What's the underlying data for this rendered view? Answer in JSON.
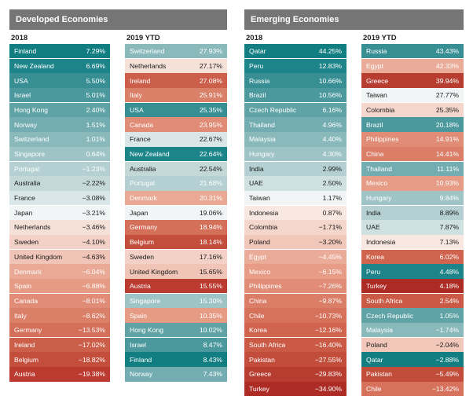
{
  "panels": {
    "developed": {
      "title": "Developed Economies"
    },
    "emerging": {
      "title": "Emerging Economies"
    }
  },
  "chart_data": [
    {
      "type": "table",
      "group": "Developed Economies",
      "period": "2018",
      "rows": [
        {
          "country": "Finland",
          "value": 7.29,
          "label": "7.29%"
        },
        {
          "country": "New Zealand",
          "value": 6.69,
          "label": "6.69%"
        },
        {
          "country": "USA",
          "value": 5.5,
          "label": "5.50%"
        },
        {
          "country": "Israel",
          "value": 5.01,
          "label": "5.01%"
        },
        {
          "country": "Hong Kong",
          "value": 2.4,
          "label": "2.40%"
        },
        {
          "country": "Norway",
          "value": 1.51,
          "label": "1.51%"
        },
        {
          "country": "Switzerland",
          "value": 1.01,
          "label": "1.01%"
        },
        {
          "country": "Singapore",
          "value": 0.64,
          "label": "0.64%"
        },
        {
          "country": "Portugal",
          "value": -1.23,
          "label": "−1.23%"
        },
        {
          "country": "Australia",
          "value": -2.22,
          "label": "−2.22%"
        },
        {
          "country": "France",
          "value": -3.08,
          "label": "−3.08%"
        },
        {
          "country": "Japan",
          "value": -3.21,
          "label": "−3.21%"
        },
        {
          "country": "Netherlands",
          "value": -3.46,
          "label": "−3.46%"
        },
        {
          "country": "Sweden",
          "value": -4.1,
          "label": "−4.10%"
        },
        {
          "country": "United Kingdom",
          "value": -4.63,
          "label": "−4.63%"
        },
        {
          "country": "Denmark",
          "value": -6.04,
          "label": "−6.04%"
        },
        {
          "country": "Spain",
          "value": -6.88,
          "label": "−6.88%"
        },
        {
          "country": "Canada",
          "value": -8.01,
          "label": "−8.01%"
        },
        {
          "country": "Italy",
          "value": -8.62,
          "label": "−8.62%"
        },
        {
          "country": "Germany",
          "value": -13.53,
          "label": "−13.53%"
        },
        {
          "country": "Ireland",
          "value": -17.02,
          "label": "−17.02%"
        },
        {
          "country": "Belgium",
          "value": -18.82,
          "label": "−18.82%"
        },
        {
          "country": "Austria",
          "value": -19.38,
          "label": "−19.38%"
        }
      ]
    },
    {
      "type": "table",
      "group": "Developed Economies",
      "period": "2019 YTD",
      "rows": [
        {
          "country": "Switzerland",
          "value": 27.93,
          "label": "27.93%"
        },
        {
          "country": "Netherlands",
          "value": 27.17,
          "label": "27.17%"
        },
        {
          "country": "Ireland",
          "value": 27.08,
          "label": "27.08%"
        },
        {
          "country": "Italy",
          "value": 25.91,
          "label": "25.91%"
        },
        {
          "country": "USA",
          "value": 25.35,
          "label": "25.35%"
        },
        {
          "country": "Canada",
          "value": 23.95,
          "label": "23.95%"
        },
        {
          "country": "France",
          "value": 22.67,
          "label": "22.67%"
        },
        {
          "country": "New Zealand",
          "value": 22.64,
          "label": "22.64%"
        },
        {
          "country": "Australia",
          "value": 22.54,
          "label": "22.54%"
        },
        {
          "country": "Portugal",
          "value": 21.68,
          "label": "21.68%"
        },
        {
          "country": "Denmark",
          "value": 20.31,
          "label": "20.31%"
        },
        {
          "country": "Japan",
          "value": 19.06,
          "label": "19.06%"
        },
        {
          "country": "Germany",
          "value": 18.94,
          "label": "18.94%"
        },
        {
          "country": "Belgium",
          "value": 18.14,
          "label": "18.14%"
        },
        {
          "country": "Sweden",
          "value": 17.16,
          "label": "17.16%"
        },
        {
          "country": "United Kingdom",
          "value": 15.65,
          "label": "15.65%"
        },
        {
          "country": "Austria",
          "value": 15.55,
          "label": "15.55%"
        },
        {
          "country": "Singapore",
          "value": 15.3,
          "label": "15.30%"
        },
        {
          "country": "Spain",
          "value": 10.35,
          "label": "10.35%"
        },
        {
          "country": "Hong Kong",
          "value": 10.02,
          "label": "10.02%"
        },
        {
          "country": "Israel",
          "value": 8.47,
          "label": "8.47%"
        },
        {
          "country": "Finland",
          "value": 8.43,
          "label": "8.43%"
        },
        {
          "country": "Norway",
          "value": 7.43,
          "label": "7.43%"
        }
      ]
    },
    {
      "type": "table",
      "group": "Emerging Economies",
      "period": "2018",
      "rows": [
        {
          "country": "Qatar",
          "value": 44.25,
          "label": "44.25%"
        },
        {
          "country": "Peru",
          "value": 12.83,
          "label": "12.83%"
        },
        {
          "country": "Russia",
          "value": 10.66,
          "label": "10.66%"
        },
        {
          "country": "Brazil",
          "value": 10.56,
          "label": "10.56%"
        },
        {
          "country": "Czech Republic",
          "value": 6.16,
          "label": "6.16%"
        },
        {
          "country": "Thailand",
          "value": 4.96,
          "label": "4.96%"
        },
        {
          "country": "Malaysia",
          "value": 4.4,
          "label": "4.40%"
        },
        {
          "country": "Hungary",
          "value": 4.3,
          "label": "4.30%"
        },
        {
          "country": "India",
          "value": 2.99,
          "label": "2.99%"
        },
        {
          "country": "UAE",
          "value": 2.5,
          "label": "2.50%"
        },
        {
          "country": "Taiwan",
          "value": 1.17,
          "label": "1.17%"
        },
        {
          "country": "Indonesia",
          "value": 0.87,
          "label": "0.87%"
        },
        {
          "country": "Colombia",
          "value": -1.71,
          "label": "−1.71%"
        },
        {
          "country": "Poland",
          "value": -3.2,
          "label": "−3.20%"
        },
        {
          "country": "Egypt",
          "value": -4.45,
          "label": "−4.45%"
        },
        {
          "country": "Mexico",
          "value": -6.15,
          "label": "−6.15%"
        },
        {
          "country": "Philippines",
          "value": -7.26,
          "label": "−7.26%"
        },
        {
          "country": "China",
          "value": -9.87,
          "label": "−9.87%"
        },
        {
          "country": "Chile",
          "value": -10.73,
          "label": "−10.73%"
        },
        {
          "country": "Korea",
          "value": -12.16,
          "label": "−12.16%"
        },
        {
          "country": "South Africa",
          "value": -16.4,
          "label": "−16.40%"
        },
        {
          "country": "Pakistan",
          "value": -27.55,
          "label": "−27.55%"
        },
        {
          "country": "Greece",
          "value": -29.83,
          "label": "−29.83%"
        },
        {
          "country": "Turkey",
          "value": -34.9,
          "label": "−34.90%"
        }
      ]
    },
    {
      "type": "table",
      "group": "Emerging Economies",
      "period": "2019 YTD",
      "rows": [
        {
          "country": "Russia",
          "value": 43.43,
          "label": "43.43%"
        },
        {
          "country": "Egypt",
          "value": 42.33,
          "label": "42.33%"
        },
        {
          "country": "Greece",
          "value": 39.94,
          "label": "39.94%"
        },
        {
          "country": "Taiwan",
          "value": 27.77,
          "label": "27.77%"
        },
        {
          "country": "Colombia",
          "value": 25.35,
          "label": "25.35%"
        },
        {
          "country": "Brazil",
          "value": 20.18,
          "label": "20.18%"
        },
        {
          "country": "Philippines",
          "value": 14.91,
          "label": "14.91%"
        },
        {
          "country": "China",
          "value": 14.41,
          "label": "14.41%"
        },
        {
          "country": "Thailand",
          "value": 11.11,
          "label": "11.11%"
        },
        {
          "country": "Mexico",
          "value": 10.93,
          "label": "10.93%"
        },
        {
          "country": "Hungary",
          "value": 9.84,
          "label": "9.84%"
        },
        {
          "country": "India",
          "value": 8.89,
          "label": "8.89%"
        },
        {
          "country": "UAE",
          "value": 7.87,
          "label": "7.87%"
        },
        {
          "country": "Indonesia",
          "value": 7.13,
          "label": "7.13%"
        },
        {
          "country": "Korea",
          "value": 6.02,
          "label": "6.02%"
        },
        {
          "country": "Peru",
          "value": 4.48,
          "label": "4.48%"
        },
        {
          "country": "Turkey",
          "value": 4.18,
          "label": "4.18%"
        },
        {
          "country": "South Africa",
          "value": 2.54,
          "label": "2.54%"
        },
        {
          "country": "Czech Republic",
          "value": 1.05,
          "label": "1.05%"
        },
        {
          "country": "Malaysia",
          "value": -1.74,
          "label": "−1.74%"
        },
        {
          "country": "Poland",
          "value": -2.04,
          "label": "−2.04%"
        },
        {
          "country": "Qatar",
          "value": -2.88,
          "label": "−2.88%"
        },
        {
          "country": "Pakistan",
          "value": -5.49,
          "label": "−5.49%"
        },
        {
          "country": "Chile",
          "value": -13.42,
          "label": "−13.42%"
        }
      ]
    }
  ],
  "country_colors": {
    "Finland": "#137e82",
    "New Zealand": "#1d8489",
    "USA": "#378f94",
    "Israel": "#4c999d",
    "Hong Kong": "#5fa3a6",
    "Norway": "#74adb1",
    "Switzerland": "#8ab9bc",
    "Singapore": "#9fc4c6",
    "Portugal": "#b4d0d2",
    "Australia": "#c4d8d9",
    "France": "#dae7e8",
    "Japan": "#f1f5f5",
    "Netherlands": "#f6e1d9",
    "Sweden": "#f3d1c6",
    "United Kingdom": "#f0c5b8",
    "Denmark": "#e9a994",
    "Spain": "#e69b85",
    "Canada": "#e08c76",
    "Italy": "#da7f68",
    "Germany": "#d4705a",
    "Ireland": "#cc5f4a",
    "Belgium": "#c44e3c",
    "Austria": "#bb3b30",
    "Qatar": "#137e82",
    "Peru": "#1d8489",
    "Russia": "#378f94",
    "Brazil": "#4c999d",
    "Czech Republic": "#5fa3a6",
    "Thailand": "#74adb1",
    "Malaysia": "#8ab9bc",
    "Hungary": "#9fc4c6",
    "India": "#b4d0d2",
    "UAE": "#cfe0e1",
    "Taiwan": "#f1f5f5",
    "Indonesia": "#f9e7e1",
    "Colombia": "#f5d6cc",
    "Poland": "#f1c7ba",
    "Egypt": "#eaac99",
    "Mexico": "#e69c86",
    "Philippines": "#e08c76",
    "China": "#db7e68",
    "Chile": "#d6715c",
    "Korea": "#d0644f",
    "South Africa": "#ca5a46",
    "Pakistan": "#c24d3b",
    "Greece": "#b83d31",
    "Turkey": "#ad2b25"
  },
  "dark_text_countries": [
    "Australia",
    "France",
    "Japan",
    "Netherlands",
    "Sweden",
    "United Kingdom",
    "India",
    "UAE",
    "Taiwan",
    "Indonesia",
    "Colombia",
    "Poland"
  ]
}
